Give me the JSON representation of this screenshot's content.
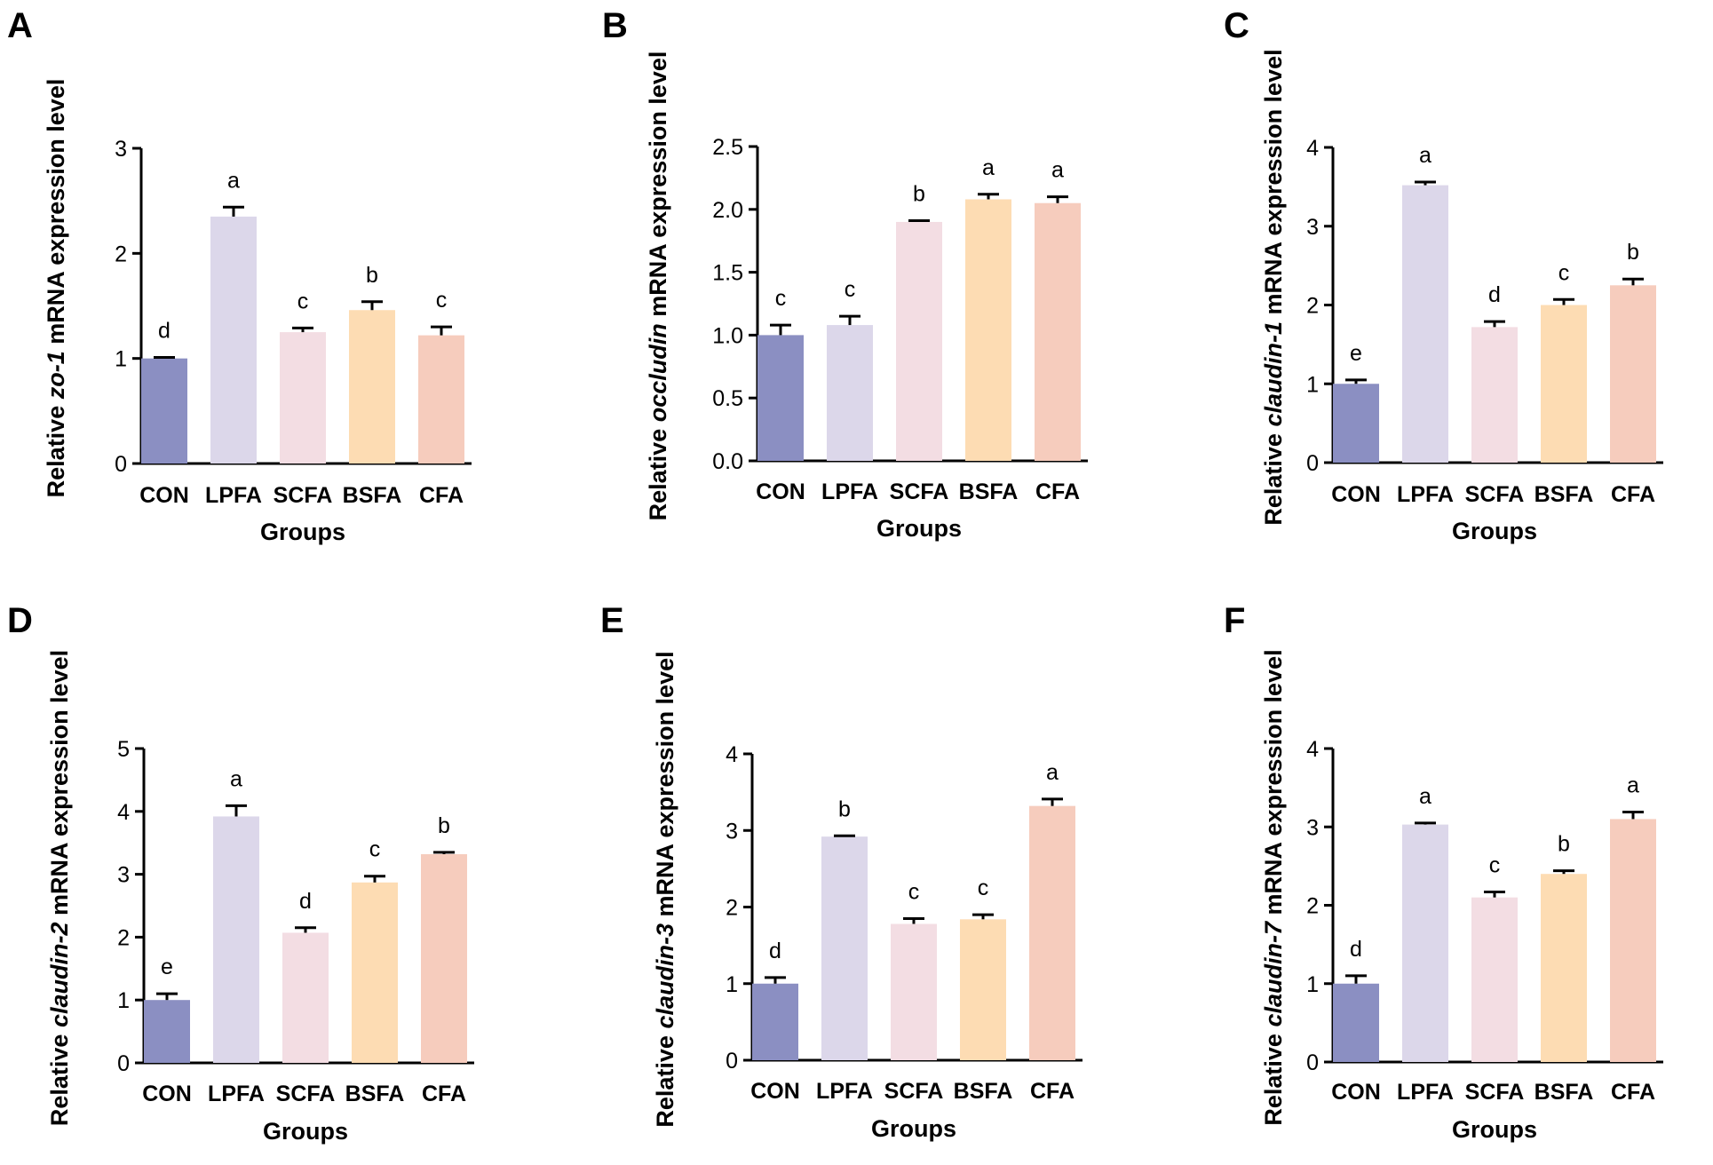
{
  "colors": {
    "CON": "#8b8fc2",
    "LPFA": "#dcd7ea",
    "SCFA": "#f3dde3",
    "BSFA": "#fddcb3",
    "CFA": "#f6ccbd"
  },
  "chart_data": [
    {
      "panel": "A",
      "type": "bar",
      "categories": [
        "CON",
        "LPFA",
        "SCFA",
        "BSFA",
        "CFA"
      ],
      "values": [
        1.0,
        2.35,
        1.25,
        1.46,
        1.22
      ],
      "errors": [
        0.01,
        0.09,
        0.04,
        0.08,
        0.08
      ],
      "significance": [
        "d",
        "a",
        "c",
        "b",
        "c"
      ],
      "ylim": [
        0,
        3
      ],
      "yticks": [
        "0",
        "1",
        "2",
        "3"
      ],
      "ylabel_pre": "Relative ",
      "ylabel_gene": "zo-1",
      "ylabel_post": " mRNA expression level",
      "xlabel": "Groups"
    },
    {
      "panel": "B",
      "type": "bar",
      "categories": [
        "CON",
        "LPFA",
        "SCFA",
        "BSFA",
        "CFA"
      ],
      "values": [
        1.0,
        1.08,
        1.9,
        2.08,
        2.05
      ],
      "errors": [
        0.08,
        0.07,
        0.01,
        0.04,
        0.05
      ],
      "significance": [
        "c",
        "c",
        "b",
        "a",
        "a"
      ],
      "ylim": [
        0,
        2.5
      ],
      "yticks": [
        "0.0",
        "0.5",
        "1.0",
        "1.5",
        "2.0",
        "2.5"
      ],
      "ylabel_pre": "Relative ",
      "ylabel_gene": "occludin",
      "ylabel_post": " mRNA expression level",
      "xlabel": "Groups"
    },
    {
      "panel": "C",
      "type": "bar",
      "categories": [
        "CON",
        "LPFA",
        "SCFA",
        "BSFA",
        "CFA"
      ],
      "values": [
        1.0,
        3.52,
        1.72,
        2.0,
        2.25
      ],
      "errors": [
        0.05,
        0.04,
        0.07,
        0.07,
        0.08
      ],
      "significance": [
        "e",
        "a",
        "d",
        "c",
        "b"
      ],
      "ylim": [
        0,
        4
      ],
      "yticks": [
        "0",
        "1",
        "2",
        "3",
        "4"
      ],
      "ylabel_pre": "Relative ",
      "ylabel_gene": "claudin-1",
      "ylabel_post": " mRNA expression level",
      "xlabel": "Groups"
    },
    {
      "panel": "D",
      "type": "bar",
      "categories": [
        "CON",
        "LPFA",
        "SCFA",
        "BSFA",
        "CFA"
      ],
      "values": [
        1.0,
        3.92,
        2.07,
        2.87,
        3.32
      ],
      "errors": [
        0.1,
        0.17,
        0.08,
        0.1,
        0.03
      ],
      "significance": [
        "e",
        "a",
        "d",
        "c",
        "b"
      ],
      "ylim": [
        0,
        5
      ],
      "yticks": [
        "0",
        "1",
        "2",
        "3",
        "4",
        "5"
      ],
      "ylabel_pre": "Relative ",
      "ylabel_gene": "claudin-2",
      "ylabel_post": " mRNA expression level",
      "xlabel": "Groups"
    },
    {
      "panel": "E",
      "type": "bar",
      "categories": [
        "CON",
        "LPFA",
        "SCFA",
        "BSFA",
        "CFA"
      ],
      "values": [
        1.0,
        2.92,
        1.78,
        1.84,
        3.32
      ],
      "errors": [
        0.08,
        0.01,
        0.07,
        0.06,
        0.09
      ],
      "significance": [
        "d",
        "b",
        "c",
        "c",
        "a"
      ],
      "ylim": [
        0,
        4
      ],
      "yticks": [
        "0",
        "1",
        "2",
        "3",
        "4"
      ],
      "ylabel_pre": "Relative ",
      "ylabel_gene": "claudin-3",
      "ylabel_post": "  mRNA expression level",
      "xlabel": "Groups"
    },
    {
      "panel": "F",
      "type": "bar",
      "categories": [
        "CON",
        "LPFA",
        "SCFA",
        "BSFA",
        "CFA"
      ],
      "values": [
        1.0,
        3.03,
        2.1,
        2.4,
        3.1
      ],
      "errors": [
        0.1,
        0.02,
        0.07,
        0.04,
        0.09
      ],
      "significance": [
        "d",
        "a",
        "c",
        "b",
        "a"
      ],
      "ylim": [
        0,
        4
      ],
      "yticks": [
        "0",
        "1",
        "2",
        "3",
        "4"
      ],
      "ylabel_pre": "Relative ",
      "ylabel_gene": "claudin-7",
      "ylabel_post": "  mRNA expression level",
      "xlabel": "Groups"
    }
  ]
}
